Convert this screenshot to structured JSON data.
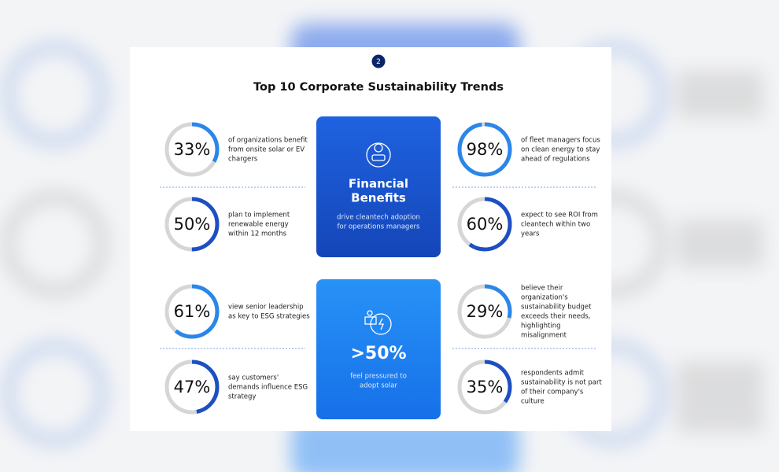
{
  "badge": "2",
  "title": "Top 10 Corporate Sustainability Trends",
  "cards": [
    {
      "heading": [
        "Financial",
        "Benefits"
      ],
      "text": [
        "drive cleantech adoption",
        "for operations managers"
      ]
    },
    {
      "heading": [
        ">50%"
      ],
      "text": [
        "feel pressured to",
        "adopt solar"
      ]
    }
  ],
  "stats": [
    {
      "value": 33,
      "label": "33%",
      "text": [
        "of organizations benefit",
        "from onsite solar or EV",
        "chargers"
      ]
    },
    {
      "value": 50,
      "label": "50%",
      "text": [
        "plan to implement",
        "renewable energy",
        "within 12 months"
      ]
    },
    {
      "value": 61,
      "label": "61%",
      "text": [
        "view senior leadership",
        "as key to ESG strategies"
      ]
    },
    {
      "value": 47,
      "label": "47%",
      "text": [
        "say customers'",
        "demands influence ESG",
        "strategy"
      ]
    },
    {
      "value": 98,
      "label": "98%",
      "text": [
        "of fleet managers focus",
        "on clean energy to stay",
        "ahead of regulations"
      ]
    },
    {
      "value": 60,
      "label": "60%",
      "text": [
        "expect to see ROI from",
        "cleantech within two",
        "years"
      ]
    },
    {
      "value": 29,
      "label": "29%",
      "text": [
        "believe their",
        "organization's",
        "sustainability budget",
        "exceeds their needs,",
        "highlighting",
        "misalignment"
      ]
    },
    {
      "value": 35,
      "label": "35%",
      "text": [
        "respondents admit",
        "sustainability is not part",
        "of their company's",
        "culture"
      ]
    }
  ]
}
